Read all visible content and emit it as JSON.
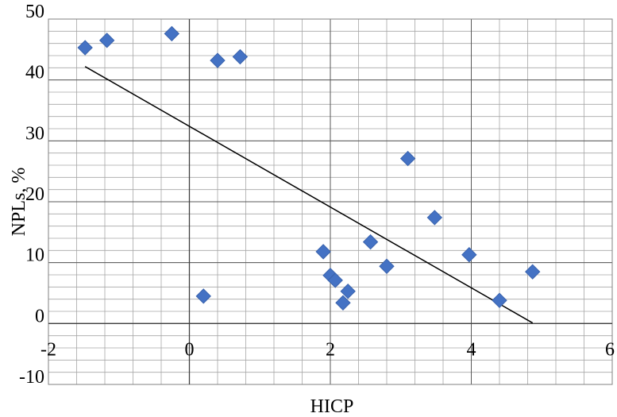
{
  "chart_data": {
    "type": "scatter",
    "xlabel": "HICP",
    "ylabel": "NPLs, %",
    "xlim": [
      -2,
      6
    ],
    "ylim": [
      -10,
      50
    ],
    "x_ticks": [
      -2,
      0,
      2,
      4,
      6
    ],
    "y_ticks": [
      -10,
      0,
      10,
      20,
      30,
      40,
      50
    ],
    "x_tick_labels": [
      "-2",
      "0",
      "2",
      "4",
      "6"
    ],
    "y_tick_labels": [
      "-10",
      "0",
      "10",
      "20",
      "30",
      "40",
      "50"
    ],
    "grid": true,
    "marker_color": "#4472C4",
    "trendline_color": "#000000",
    "series": [
      {
        "points": [
          {
            "x": -1.48,
            "y": 45.3
          },
          {
            "x": -1.17,
            "y": 46.5
          },
          {
            "x": -0.25,
            "y": 47.6
          },
          {
            "x": 0.4,
            "y": 43.2
          },
          {
            "x": 0.72,
            "y": 43.8
          },
          {
            "x": 0.2,
            "y": 4.5
          },
          {
            "x": 1.9,
            "y": 11.8
          },
          {
            "x": 2.0,
            "y": 7.9
          },
          {
            "x": 2.07,
            "y": 7.1
          },
          {
            "x": 2.18,
            "y": 3.4
          },
          {
            "x": 2.25,
            "y": 5.3
          },
          {
            "x": 2.57,
            "y": 13.4
          },
          {
            "x": 2.8,
            "y": 9.4
          },
          {
            "x": 3.1,
            "y": 27.1
          },
          {
            "x": 3.48,
            "y": 17.4
          },
          {
            "x": 3.97,
            "y": 11.3
          },
          {
            "x": 4.4,
            "y": 3.8
          },
          {
            "x": 4.87,
            "y": 8.5
          }
        ]
      }
    ],
    "trendline": {
      "x": [
        -1.48,
        4.87
      ],
      "y": [
        42.2,
        0.1
      ]
    }
  }
}
